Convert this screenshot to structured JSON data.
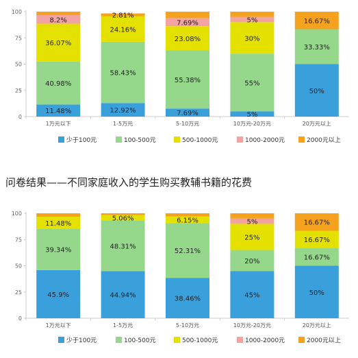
{
  "caption": "问卷结果——不同家庭收入的学生购买教辅书籍的花费",
  "colors": {
    "少于100元": "#3aa0dc",
    "100-500元": "#95d88c",
    "500-1000元": "#e4e000",
    "1000-2000元": "#f4a3a3",
    "2000元以上": "#f5a21e"
  },
  "chart_data": [
    {
      "type": "bar",
      "stacked": true,
      "categories": [
        "1万元以下",
        "1-5万元",
        "5-10万元",
        "10万元-20万元",
        "20万元以上"
      ],
      "yticks": [
        "0",
        "25",
        "50",
        "75",
        "100"
      ],
      "ylim": [
        0,
        100
      ],
      "legend_position": "bottom",
      "series": [
        {
          "name": "少于100元",
          "values": [
            11.48,
            12.92,
            7.69,
            5,
            50
          ],
          "labels": [
            "11.48%",
            "12.92%",
            "7.69%",
            "5%",
            "50%"
          ]
        },
        {
          "name": "100-500元",
          "values": [
            40.98,
            58.43,
            55.38,
            55,
            33.33
          ],
          "labels": [
            "40.98%",
            "58.43%",
            "55.38%",
            "55%",
            "33.33%"
          ]
        },
        {
          "name": "500-1000元",
          "values": [
            36.07,
            24.16,
            23.08,
            30,
            0
          ],
          "labels": [
            "36.07%",
            "24.16%",
            "23.08%",
            "30%",
            ""
          ]
        },
        {
          "name": "1000-2000元",
          "values": [
            8.2,
            0,
            7.69,
            5,
            0
          ],
          "labels": [
            "8.2%",
            "",
            "7.69%",
            "5%",
            ""
          ]
        },
        {
          "name": "2000元以上",
          "values": [
            3.28,
            2.81,
            6.15,
            5,
            16.67
          ],
          "labels": [
            "",
            "2.81%",
            "",
            "",
            "16.67%"
          ]
        }
      ]
    },
    {
      "type": "bar",
      "stacked": true,
      "categories": [
        "1万元以下",
        "1-5万元",
        "5-10万元",
        "10万元-20万元",
        "20万元以上"
      ],
      "yticks": [
        "0",
        "25",
        "50",
        "75",
        "100"
      ],
      "ylim": [
        0,
        100
      ],
      "legend_position": "bottom",
      "series": [
        {
          "name": "少于100元",
          "values": [
            45.9,
            44.94,
            38.46,
            45,
            50
          ],
          "labels": [
            "45.9%",
            "44.94%",
            "38.46%",
            "45%",
            "50%"
          ]
        },
        {
          "name": "100-500元",
          "values": [
            39.34,
            48.31,
            52.31,
            20,
            16.67
          ],
          "labels": [
            "39.34%",
            "48.31%",
            "52.31%",
            "20%",
            "16.67%"
          ]
        },
        {
          "name": "500-1000元",
          "values": [
            11.48,
            5.06,
            6.15,
            25,
            16.67
          ],
          "labels": [
            "11.48%",
            "5.06%",
            "6.15%",
            "25%",
            "16.67%"
          ]
        },
        {
          "name": "1000-2000元",
          "values": [
            0,
            0,
            0,
            5,
            0
          ],
          "labels": [
            "",
            "",
            "",
            "5%",
            ""
          ]
        },
        {
          "name": "2000元以上",
          "values": [
            3.28,
            1.69,
            3.08,
            5,
            16.67
          ],
          "labels": [
            "",
            "",
            "",
            "",
            "16.67%"
          ]
        }
      ]
    }
  ]
}
